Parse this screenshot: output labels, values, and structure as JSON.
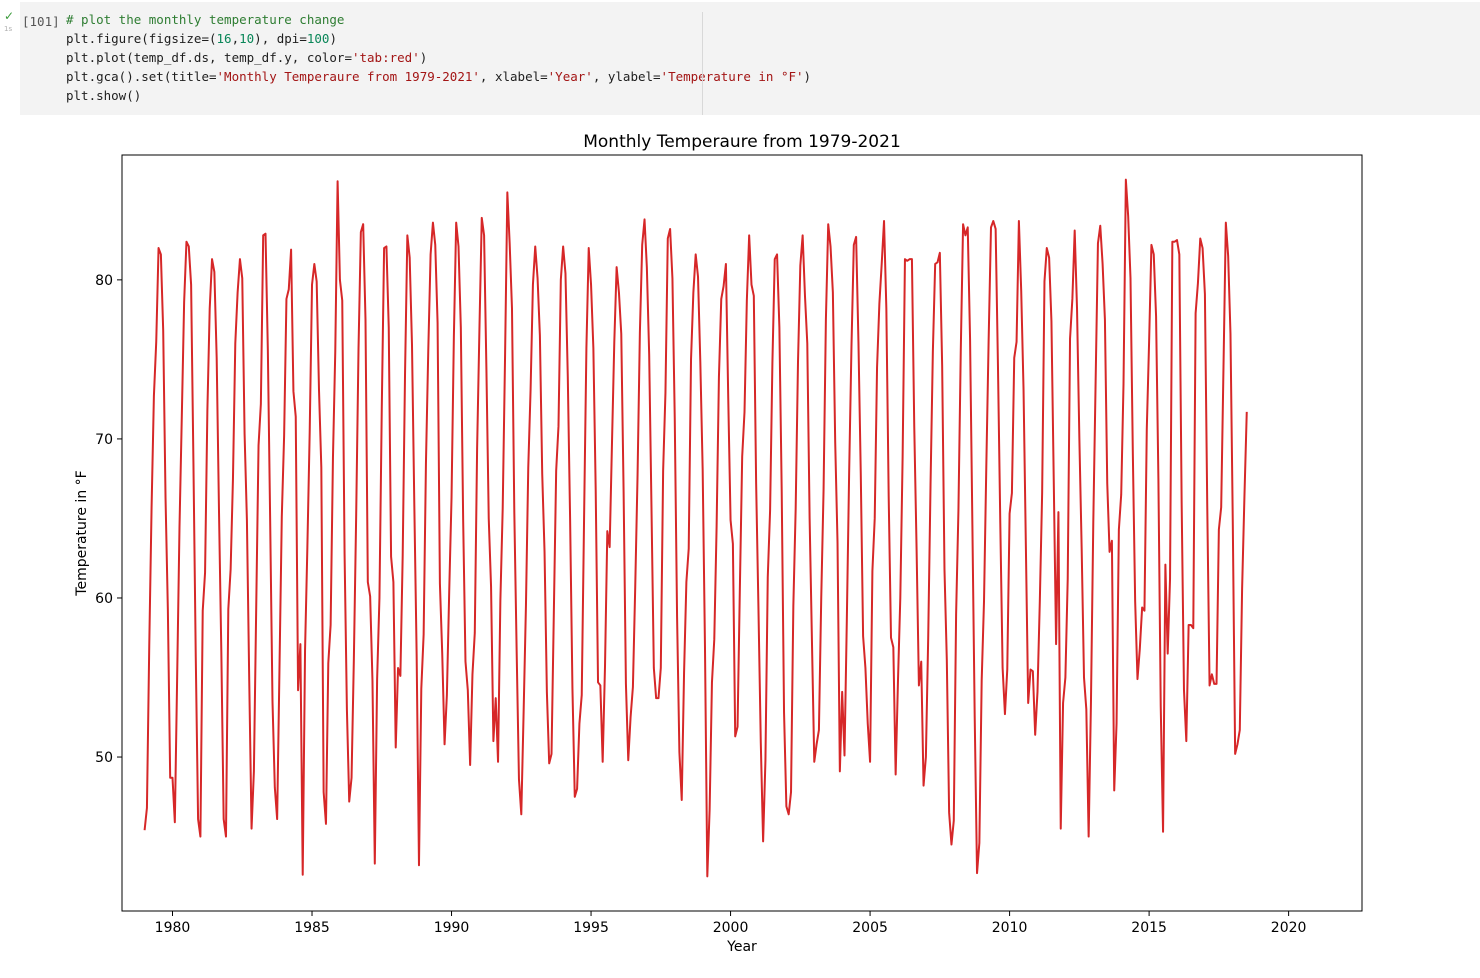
{
  "cell": {
    "status_icon": "check-icon",
    "status_color": "#3c9c3c",
    "run_time": "1s",
    "execution_count": "[101]",
    "code_lines": [
      [
        {
          "t": "comment",
          "v": "# plot the monthly temperature change"
        }
      ],
      [
        {
          "t": "plain",
          "v": "plt.figure(figsize=("
        },
        {
          "t": "num",
          "v": "16"
        },
        {
          "t": "plain",
          "v": ","
        },
        {
          "t": "num",
          "v": "10"
        },
        {
          "t": "plain",
          "v": "), dpi="
        },
        {
          "t": "num",
          "v": "100"
        },
        {
          "t": "plain",
          "v": ")"
        }
      ],
      [
        {
          "t": "plain",
          "v": "plt.plot(temp_df.ds, temp_df.y, color="
        },
        {
          "t": "str",
          "v": "'tab:red'"
        },
        {
          "t": "plain",
          "v": ")"
        }
      ],
      [
        {
          "t": "plain",
          "v": "plt.gca().set(title="
        },
        {
          "t": "str",
          "v": "'Monthly Temperaure from 1979-2021'"
        },
        {
          "t": "plain",
          "v": ", xlabel="
        },
        {
          "t": "str",
          "v": "'Year'"
        },
        {
          "t": "plain",
          "v": ", ylabel="
        },
        {
          "t": "str",
          "v": "'Temperature in °F'"
        },
        {
          "t": "plain",
          "v": ")"
        }
      ],
      [
        {
          "t": "plain",
          "v": "plt.show()"
        }
      ]
    ]
  },
  "chart_data": {
    "type": "line",
    "title": "Monthly Temperaure from 1979-2021",
    "xlabel": "Year",
    "ylabel": "Temperature in °F",
    "line_color": "#d62728",
    "xlim": [
      1978.19,
      2022.63
    ],
    "ylim": [
      40.32,
      87.85
    ],
    "xticks": [
      1980,
      1985,
      1990,
      1995,
      2000,
      2005,
      2010,
      2015,
      2020
    ],
    "xtick_labels": [
      "1980",
      "1985",
      "1990",
      "1995",
      "2000",
      "2005",
      "2010",
      "2015",
      "2020"
    ],
    "yticks": [
      50,
      60,
      70,
      80
    ],
    "ytick_labels": [
      "50",
      "60",
      "70",
      "80"
    ],
    "grid": false,
    "series": [
      {
        "start_year": 1979,
        "start_month": 1,
        "frequency": "monthly",
        "y": [
          45.4,
          46.8,
          57.0,
          65.7,
          72.7,
          76.1,
          82.0,
          81.6,
          76.8,
          66.3,
          59.3,
          48.7,
          48.7,
          45.9,
          55.0,
          64.4,
          71.4,
          78.6,
          82.4,
          82.1,
          79.7,
          68.5,
          56.3,
          46.1,
          45.0,
          59.2,
          61.6,
          71.8,
          78.2,
          81.3,
          80.5,
          75.1,
          65.4,
          56.6,
          46.1,
          45.0,
          59.3,
          61.8,
          67.5,
          76.0,
          79.2,
          81.3,
          80.1,
          70.3,
          64.9,
          54.8,
          45.5,
          49.1,
          59.4,
          69.6,
          72.2,
          82.8,
          82.9,
          75.6,
          64.9,
          53.5,
          48.1,
          46.1,
          55.5,
          65.1,
          70.2,
          78.8,
          79.4,
          81.9,
          73.0,
          71.4,
          54.2,
          57.1,
          42.6,
          56.7,
          63.2,
          70.4,
          79.7,
          81.0,
          79.9,
          73.1,
          68.2,
          47.8,
          45.8,
          55.9,
          58.3,
          68.8,
          75.5,
          86.2,
          80.0,
          78.7,
          62.8,
          53.0,
          47.2,
          48.7,
          56.2,
          65.3,
          75.7,
          83.0,
          83.5,
          77.5,
          61.0,
          60.1,
          54.8,
          43.3,
          54.9,
          60.0,
          71.9,
          82.0,
          82.1,
          77.0,
          62.6,
          61.0,
          50.6,
          55.6,
          55.1,
          62.7,
          74.1,
          82.8,
          81.4,
          75.9,
          65.8,
          56.4,
          43.2,
          54.3,
          57.7,
          68.5,
          75.6,
          81.6,
          83.6,
          82.2,
          77.3,
          60.9,
          56.5,
          50.8,
          53.9,
          60.4,
          66.3,
          76.4,
          83.6,
          82.1,
          77.0,
          64.9,
          56.0,
          54.2,
          49.5,
          55.2,
          57.8,
          69.4,
          76.9,
          83.9,
          82.8,
          74.4,
          65.0,
          60.7,
          51.0,
          53.7,
          49.7,
          59.8,
          65.6,
          75.0,
          85.5,
          82.3,
          78.2,
          65.4,
          56.7,
          48.6,
          46.4,
          52.8,
          59.5,
          68.2,
          73.1,
          79.7,
          82.1,
          80.1,
          76.5,
          67.8,
          62.9,
          54.1,
          49.6,
          50.2,
          59.1,
          68.0,
          70.8,
          80.0,
          82.1,
          80.4,
          73.9,
          64.9,
          54.3,
          47.5,
          48.0,
          52.1,
          53.9,
          65.0,
          75.7,
          82.0,
          79.7,
          75.7,
          66.8,
          54.7,
          54.5,
          49.7,
          55.7,
          64.2,
          63.2,
          69.7,
          76.1,
          80.8,
          79.2,
          76.6,
          66.7,
          54.6,
          49.8,
          52.5,
          54.4,
          60.7,
          67.7,
          76.7,
          82.2,
          83.8,
          80.8,
          75.3,
          65.6,
          55.6,
          53.7,
          53.7,
          55.6,
          68.0,
          72.9,
          82.6,
          83.2,
          80.1,
          71.3,
          58.8,
          50.3,
          47.3,
          55.3,
          61.0,
          63.1,
          75.0,
          79.2,
          81.6,
          80.2,
          74.8,
          68.1,
          56.9,
          42.5,
          46.7,
          54.7,
          57.4,
          64.5,
          73.9,
          78.8,
          79.6,
          81.0,
          72.6,
          64.9,
          63.4,
          51.3,
          51.9,
          60.6,
          68.9,
          71.7,
          78.7,
          82.8,
          79.7,
          79.0,
          67.2,
          59.3,
          50.9,
          44.7,
          49.8,
          61.3,
          65.5,
          74.8,
          81.3,
          81.6,
          77.0,
          66.7,
          52.8,
          46.9,
          46.4,
          47.8,
          59.5,
          65.6,
          74.8,
          80.9,
          82.8,
          79.0,
          76.0,
          65.0,
          57.3,
          49.7,
          50.8,
          51.7,
          60.0,
          66.8,
          77.5,
          83.5,
          82.1,
          79.2,
          69.8,
          63.5,
          49.1,
          54.1,
          50.1,
          58.6,
          67.9,
          75.8,
          82.2,
          82.7,
          76.1,
          67.8,
          57.6,
          55.6,
          52.1,
          49.7,
          61.7,
          65.0,
          74.5,
          78.5,
          81.0,
          83.7,
          78.2,
          66.4,
          57.5,
          56.9,
          48.9,
          54.8,
          60.0,
          68.9,
          81.3,
          81.2,
          81.3,
          81.3,
          70.8,
          63.1,
          54.5,
          56.0,
          48.2,
          50.0,
          57.5,
          67.1,
          75.5,
          81.0,
          81.1,
          81.7,
          74.6,
          61.8,
          56.1,
          46.5,
          44.5,
          46.0,
          59.0,
          65.5,
          75.5,
          83.5,
          82.8,
          83.3,
          76.3,
          64.6,
          52.5,
          42.7,
          44.6,
          54.8,
          59.8,
          68.4,
          76.3,
          83.3,
          83.7,
          83.2,
          74.6,
          64.7,
          55.6,
          52.7,
          55.5,
          65.3,
          66.6,
          75.1,
          76.1,
          83.7,
          79.3,
          73.1,
          63.3,
          53.4,
          55.5,
          55.4,
          51.4,
          54.1,
          59.8,
          66.6,
          79.9,
          82.0,
          81.4,
          77.4,
          67.3,
          57.1,
          65.4,
          45.5,
          53.4,
          55.0,
          61.2,
          76.3,
          78.8,
          83.1,
          78.2,
          70.1,
          63.1,
          55.0,
          53.0,
          45.0,
          53.5,
          64.8,
          73.6,
          82.3,
          83.4,
          81.0,
          77.5,
          67.2,
          62.9,
          63.6,
          47.9,
          52.1,
          64.3,
          66.5,
          73.5,
          86.3,
          84.0,
          80.1,
          69.1,
          59.8,
          54.9,
          56.8,
          59.4,
          59.2,
          70.6,
          76.1,
          82.2,
          81.6,
          77.7,
          67.5,
          53.2,
          45.3,
          62.1,
          56.5,
          61.2,
          82.4,
          82.4,
          82.5,
          81.6,
          66.0,
          54.2,
          51.0,
          58.3,
          58.3,
          58.1,
          77.9,
          79.8,
          82.6,
          82.0,
          79.1,
          65.9,
          54.5,
          55.2,
          54.6,
          54.6,
          64.3,
          65.7,
          74.6,
          83.6,
          81.5,
          76.6,
          64.6,
          50.2,
          50.8,
          51.7,
          60.6,
          66.4,
          71.7
        ]
      }
    ]
  }
}
